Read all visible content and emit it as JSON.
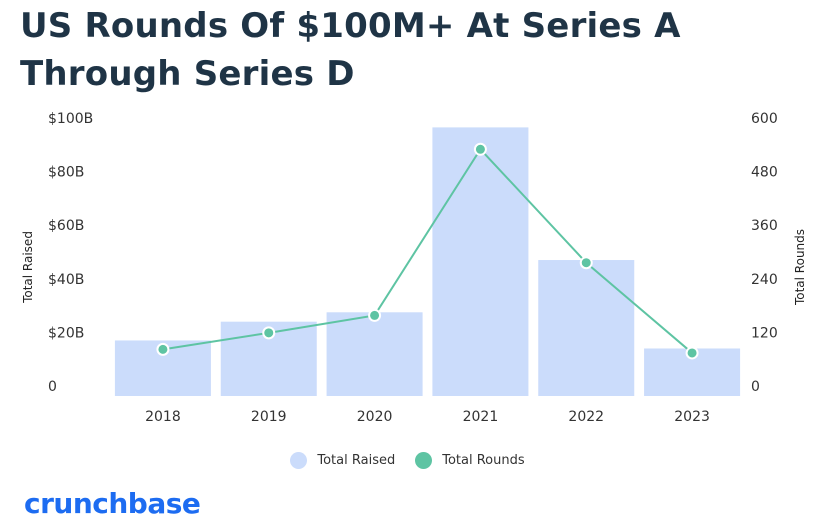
{
  "colors": {
    "bar": "#cbdcfb",
    "line": "#5ec4a3",
    "title": "#1f3446",
    "logo": "#1d6cf1"
  },
  "chart_data": {
    "type": "bar",
    "title": "US Rounds Of $100M+ At Series A Through Series D",
    "categories": [
      "2018",
      "2019",
      "2020",
      "2021",
      "2022",
      "2023"
    ],
    "series": [
      {
        "name": "Total Raised",
        "type": "bar",
        "axis": "left",
        "values": [
          17,
          24,
          27.5,
          96.5,
          47,
          14
        ]
      },
      {
        "name": "Total Rounds",
        "type": "line",
        "axis": "right",
        "values": [
          82,
          119,
          158,
          530,
          276,
          74
        ]
      }
    ],
    "ylabel": "Total Raised",
    "y2label": "Total Rounds",
    "ylim": [
      0,
      100
    ],
    "y2lim": [
      0,
      600
    ],
    "yticks": [
      "0",
      "$20B",
      "$40B",
      "$60B",
      "$80B",
      "$100B"
    ],
    "y2ticks": [
      "0",
      "120",
      "240",
      "360",
      "480",
      "600"
    ],
    "grid": false,
    "legend_position": "bottom"
  },
  "legend": [
    {
      "label": "Total Raised",
      "color": "#cbdcfb"
    },
    {
      "label": "Total Rounds",
      "color": "#5ec4a3"
    }
  ],
  "logo_text": "crunchbase"
}
